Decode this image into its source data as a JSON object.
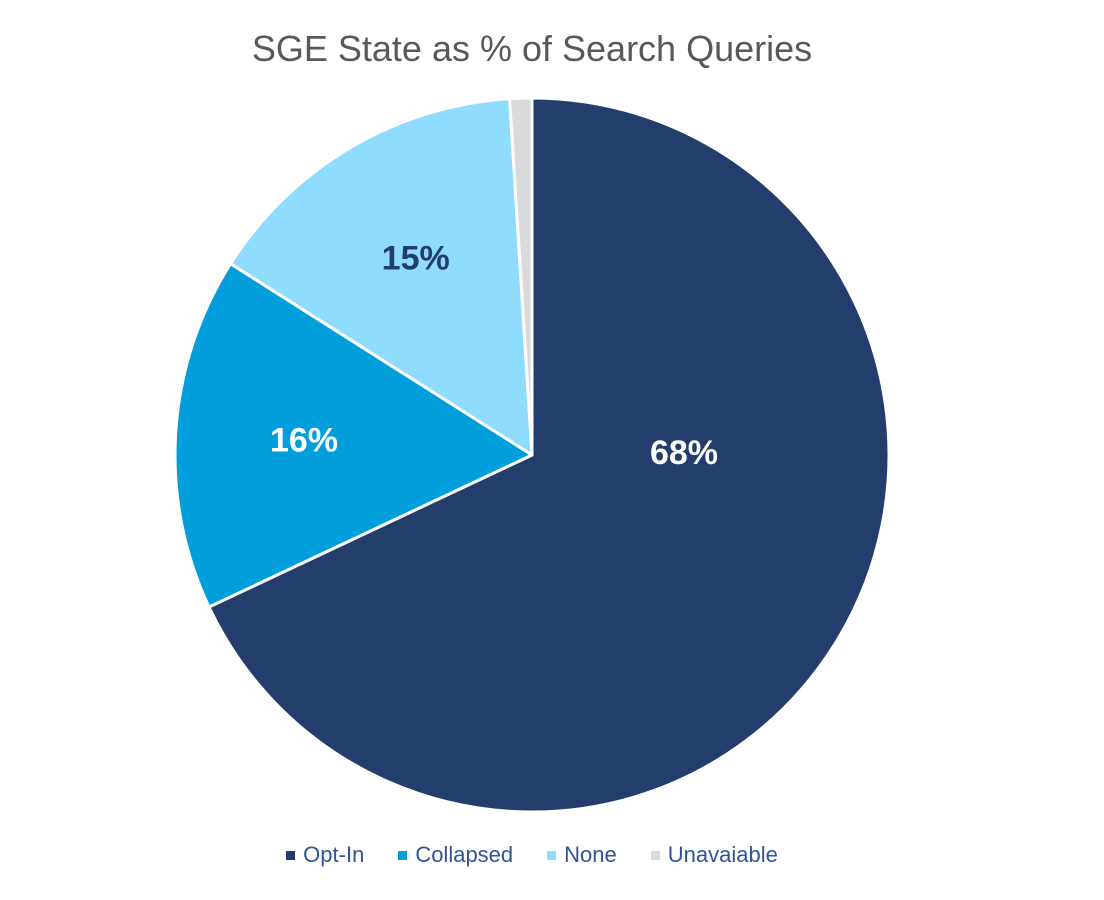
{
  "chart_data": {
    "type": "pie",
    "title": "SGE State as % of Search Queries",
    "start_angle": "12 o'clock",
    "direction": "clockwise",
    "categories": [
      "Opt-In",
      "Collapsed",
      "None",
      "Unavaiable"
    ],
    "values": [
      68,
      16,
      15,
      1
    ],
    "data_labels": [
      "68%",
      "16%",
      "15%",
      ""
    ],
    "colors": [
      "#233d6c",
      "#009fdb",
      "#8fdcff",
      "#d9dadc"
    ],
    "label_colors": [
      "#ffffff",
      "#ffffff",
      "#233d6c",
      "#233d6c"
    ],
    "legend": {
      "position": "bottom",
      "items": [
        {
          "label": "Opt-In",
          "color": "#233d6c"
        },
        {
          "label": "Collapsed",
          "color": "#009fdb"
        },
        {
          "label": "None",
          "color": "#8fdcff"
        },
        {
          "label": "Unavaiable",
          "color": "#d9dadc"
        }
      ]
    }
  }
}
